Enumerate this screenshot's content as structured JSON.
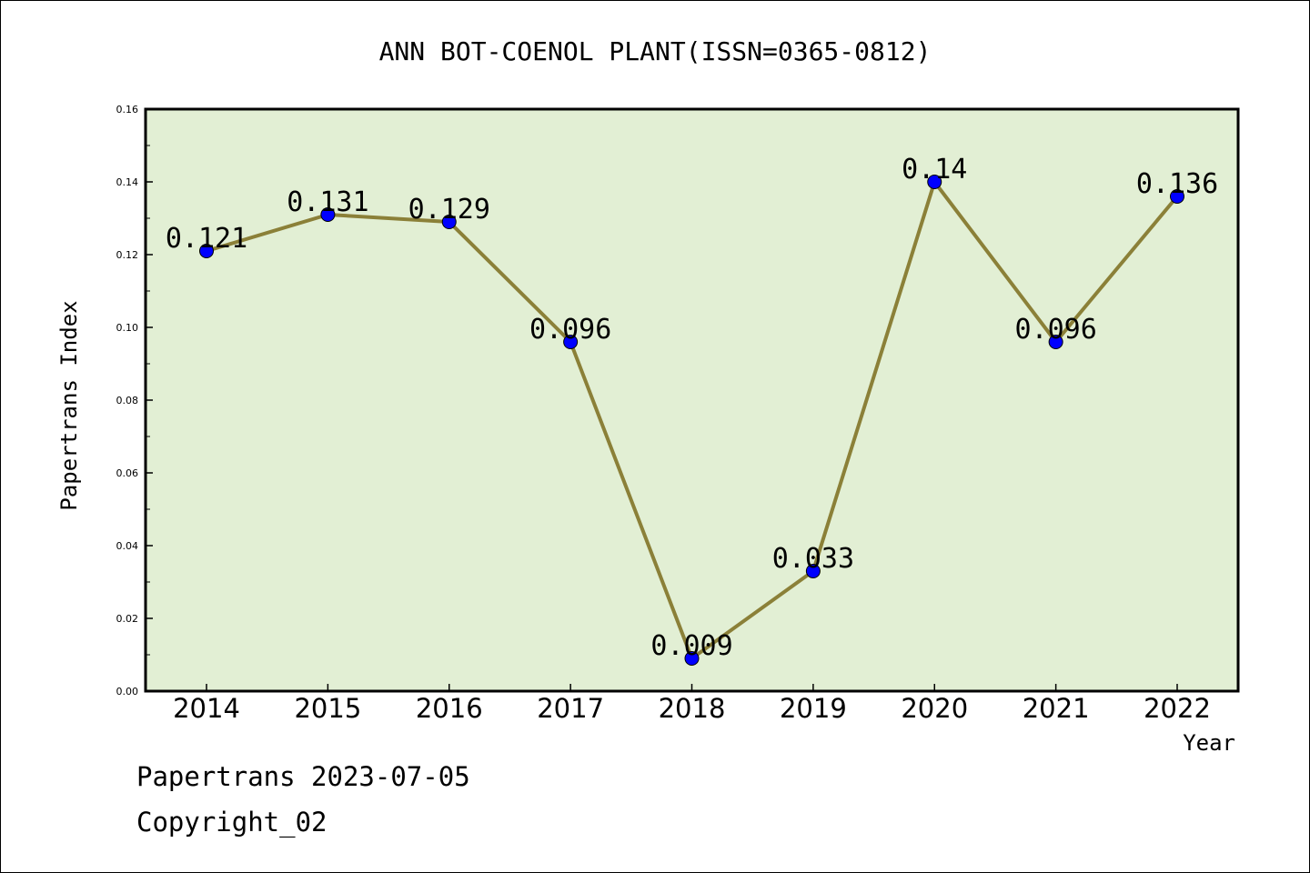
{
  "chart_data": {
    "type": "line",
    "title": "ANN BOT-COENOL PLANT(ISSN=0365-0812)",
    "xlabel": "Year",
    "ylabel": "Papertrans Index",
    "categories": [
      "2014",
      "2015",
      "2016",
      "2017",
      "2018",
      "2019",
      "2020",
      "2021",
      "2022"
    ],
    "values": [
      0.121,
      0.131,
      0.129,
      0.096,
      0.009,
      0.033,
      0.14,
      0.096,
      0.136
    ],
    "data_labels": [
      "0.121",
      "0.131",
      "0.129",
      "0.096",
      "0.009",
      "0.033",
      "0.14",
      "0.096",
      "0.136"
    ],
    "ylim": [
      0,
      0.16
    ],
    "yticks": [
      "0.00",
      "0.02",
      "0.04",
      "0.06",
      "0.08",
      "0.10",
      "0.12",
      "0.14",
      "0.16"
    ],
    "grid": false,
    "legend": "none",
    "colors": {
      "plot_bg": "#e2efd4",
      "line": "#8b8038",
      "marker": "#0000ff"
    }
  },
  "footer": {
    "line1": "Papertrans 2023-07-05",
    "line2": "Copyright_02"
  }
}
